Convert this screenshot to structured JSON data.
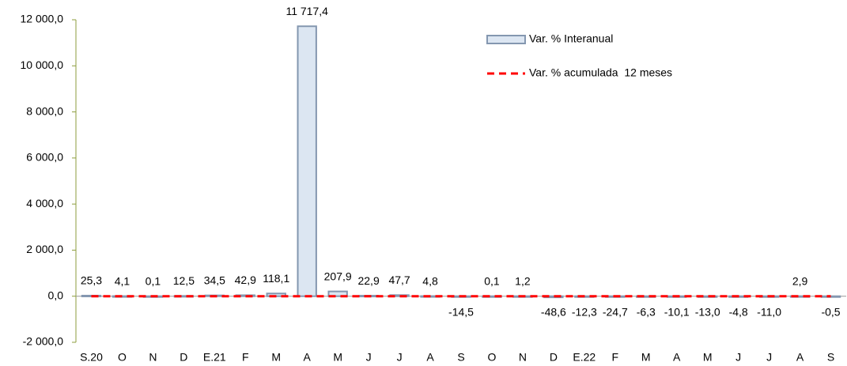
{
  "chart_data": {
    "type": "bar",
    "categories": [
      "S.20",
      "O",
      "N",
      "D",
      "E.21",
      "F",
      "M",
      "A",
      "M",
      "J",
      "J",
      "A",
      "S",
      "O",
      "N",
      "D",
      "E.22",
      "F",
      "M",
      "A",
      "M",
      "J",
      "J",
      "A",
      "S"
    ],
    "series": [
      {
        "name": "Var. % Interanual",
        "type": "bar",
        "color": "#dce6f2",
        "stroke": "#8497b0",
        "values": [
          25.3,
          4.1,
          0.1,
          12.5,
          34.5,
          42.9,
          118.1,
          11717.4,
          207.9,
          22.9,
          47.7,
          4.8,
          -14.5,
          0.1,
          1.2,
          -48.6,
          -12.3,
          -24.7,
          -6.3,
          -10.1,
          -13.0,
          -4.8,
          -11.0,
          2.9,
          -0.5
        ],
        "value_labels": [
          "25,3",
          "4,1",
          "0,1",
          "12,5",
          "34,5",
          "42,9",
          "118,1",
          "11 717,4",
          "207,9",
          "22,9",
          "47,7",
          "4,8",
          "-14,5",
          "0,1",
          "1,2",
          "-48,6",
          "-12,3",
          "-24,7",
          "-6,3",
          "-10,1",
          "-13,0",
          "-4,8",
          "-11,0",
          "2,9",
          "-0,5"
        ]
      },
      {
        "name": "Var. % acumulada  12 meses",
        "type": "line",
        "color": "#ff0000",
        "values": [
          0,
          0,
          0,
          0,
          0,
          0,
          0,
          0,
          0,
          0,
          0,
          0,
          0,
          0,
          0,
          0,
          0,
          0,
          0,
          0,
          0,
          0,
          0,
          0,
          0
        ]
      }
    ],
    "ylim": [
      -2000,
      12000
    ],
    "yticks": [
      {
        "value": -2000,
        "label": "-2 000,0"
      },
      {
        "value": 0,
        "label": "0,0"
      },
      {
        "value": 2000,
        "label": "2 000,0"
      },
      {
        "value": 4000,
        "label": "4 000,0"
      },
      {
        "value": 6000,
        "label": "6 000,0"
      },
      {
        "value": 8000,
        "label": "8 000,0"
      },
      {
        "value": 10000,
        "label": "10 000,0"
      },
      {
        "value": 12000,
        "label": "12 000,0"
      }
    ],
    "grid": false,
    "legend": "top-right"
  }
}
